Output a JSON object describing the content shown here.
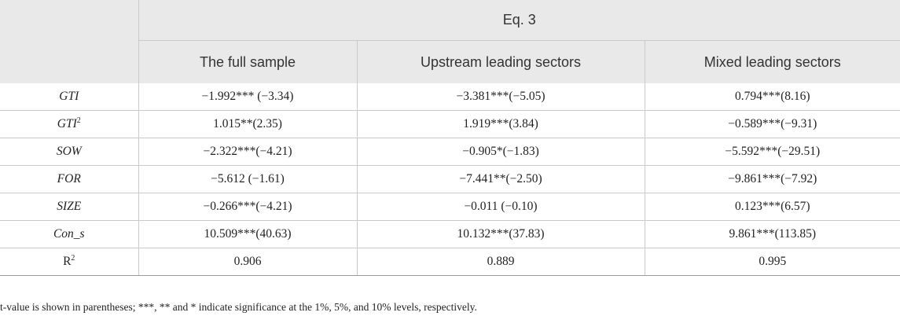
{
  "table": {
    "eq_header": "Eq. 3",
    "columns": [
      "The full sample",
      "Upstream leading sectors",
      "Mixed leading sectors"
    ],
    "rows": [
      {
        "var": "GTI",
        "sup": "",
        "values": [
          "−1.992*** (−3.34)",
          "−3.381***(−5.05)",
          "0.794***(8.16)"
        ]
      },
      {
        "var": "GTI",
        "sup": "2",
        "values": [
          "1.015**(2.35)",
          "1.919***(3.84)",
          "−0.589***(−9.31)"
        ]
      },
      {
        "var": "SOW",
        "sup": "",
        "values": [
          "−2.322***(−4.21)",
          "−0.905*(−1.83)",
          "−5.592***(−29.51)"
        ]
      },
      {
        "var": "FOR",
        "sup": "",
        "values": [
          "−5.612 (−1.61)",
          "−7.441**(−2.50)",
          "−9.861***(−7.92)"
        ]
      },
      {
        "var": "SIZE",
        "sup": "",
        "values": [
          "−0.266***(−4.21)",
          "−0.011 (−0.10)",
          "0.123***(6.57)"
        ]
      },
      {
        "var": "Con_s",
        "sup": "",
        "values": [
          "10.509***(40.63)",
          "10.132***(37.83)",
          "9.861***(113.85)"
        ]
      },
      {
        "var": "R",
        "sup": "2",
        "values": [
          "0.906",
          "0.889",
          "0.995"
        ]
      }
    ]
  },
  "note": "t-value is shown in parentheses; ***, ** and * indicate significance at the 1%, 5%, and 10% levels, respectively."
}
